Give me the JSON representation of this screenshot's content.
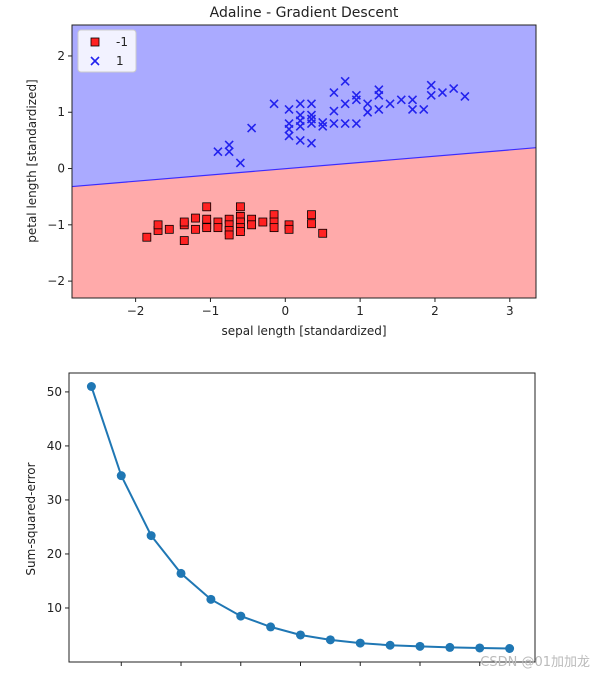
{
  "chart_data": [
    {
      "type": "scatter",
      "title": "Adaline - Gradient Descent",
      "xlabel": "sepal length [standardized]",
      "ylabel": "petal length [standardized]",
      "xlim": [
        -2.85,
        3.35
      ],
      "ylim": [
        -2.3,
        2.55
      ],
      "x_ticks": [
        -2,
        -1,
        0,
        1,
        2,
        3
      ],
      "x_tick_labels": [
        "−2",
        "−1",
        "0",
        "1",
        "2",
        "3"
      ],
      "y_ticks": [
        -2,
        -1,
        0,
        1,
        2
      ],
      "y_tick_labels": [
        "−2",
        "−1",
        "0",
        "1",
        "2"
      ],
      "decision_boundary": {
        "points": [
          [
            -2.85,
            -0.32
          ],
          [
            3.35,
            0.37
          ]
        ],
        "color": "#3b2bff"
      },
      "regions": [
        {
          "label": "-1",
          "color": "#ffaaaa"
        },
        {
          "label": "1",
          "color": "#aaaaff"
        }
      ],
      "legend": {
        "position": "top-left",
        "entries": [
          {
            "label": "-1",
            "marker": "square",
            "color": "#ff2222"
          },
          {
            "label": "1",
            "marker": "x",
            "color": "#2222ee"
          }
        ]
      },
      "series": [
        {
          "name": "-1",
          "marker": "square",
          "color": "#ff2222",
          "points": [
            [
              -1.85,
              -1.22
            ],
            [
              -1.7,
              -1.1
            ],
            [
              -1.7,
              -1.0
            ],
            [
              -1.55,
              -1.08
            ],
            [
              -1.35,
              -1.28
            ],
            [
              -1.35,
              -1.0
            ],
            [
              -1.35,
              -0.95
            ],
            [
              -1.2,
              -1.08
            ],
            [
              -1.2,
              -0.88
            ],
            [
              -1.05,
              -1.0
            ],
            [
              -1.05,
              -0.9
            ],
            [
              -1.05,
              -0.68
            ],
            [
              -1.05,
              -1.05
            ],
            [
              -0.9,
              -0.95
            ],
            [
              -0.9,
              -1.05
            ],
            [
              -0.75,
              -0.9
            ],
            [
              -0.75,
              -1.0
            ],
            [
              -0.75,
              -1.1
            ],
            [
              -0.75,
              -1.18
            ],
            [
              -0.6,
              -0.68
            ],
            [
              -0.6,
              -0.85
            ],
            [
              -0.6,
              -0.95
            ],
            [
              -0.6,
              -1.05
            ],
            [
              -0.6,
              -1.12
            ],
            [
              -0.45,
              -0.9
            ],
            [
              -0.45,
              -1.0
            ],
            [
              -0.3,
              -0.95
            ],
            [
              -0.15,
              -0.82
            ],
            [
              -0.15,
              -0.95
            ],
            [
              -0.15,
              -1.05
            ],
            [
              0.05,
              -1.0
            ],
            [
              0.05,
              -1.08
            ],
            [
              0.35,
              -0.82
            ],
            [
              0.35,
              -0.98
            ],
            [
              0.5,
              -1.15
            ]
          ]
        },
        {
          "name": "1",
          "marker": "x",
          "color": "#2222ee",
          "points": [
            [
              -0.9,
              0.3
            ],
            [
              -0.75,
              0.3
            ],
            [
              -0.75,
              0.42
            ],
            [
              -0.6,
              0.1
            ],
            [
              -0.45,
              0.72
            ],
            [
              -0.15,
              1.15
            ],
            [
              0.05,
              0.58
            ],
            [
              0.05,
              0.7
            ],
            [
              0.05,
              0.8
            ],
            [
              0.05,
              1.05
            ],
            [
              0.2,
              1.15
            ],
            [
              0.2,
              0.95
            ],
            [
              0.2,
              0.85
            ],
            [
              0.2,
              0.75
            ],
            [
              0.2,
              0.5
            ],
            [
              0.35,
              0.95
            ],
            [
              0.35,
              0.88
            ],
            [
              0.35,
              0.8
            ],
            [
              0.35,
              1.15
            ],
            [
              0.35,
              0.45
            ],
            [
              0.5,
              0.75
            ],
            [
              0.5,
              0.82
            ],
            [
              0.65,
              1.02
            ],
            [
              0.65,
              1.35
            ],
            [
              0.65,
              0.8
            ],
            [
              0.8,
              1.55
            ],
            [
              0.8,
              1.15
            ],
            [
              0.8,
              0.8
            ],
            [
              0.95,
              1.3
            ],
            [
              0.95,
              1.22
            ],
            [
              0.95,
              0.8
            ],
            [
              1.1,
              1.15
            ],
            [
              1.1,
              1.0
            ],
            [
              1.25,
              1.4
            ],
            [
              1.25,
              1.3
            ],
            [
              1.25,
              1.05
            ],
            [
              1.4,
              1.15
            ],
            [
              1.55,
              1.22
            ],
            [
              1.7,
              1.22
            ],
            [
              1.7,
              1.05
            ],
            [
              1.85,
              1.05
            ],
            [
              1.95,
              1.48
            ],
            [
              1.95,
              1.3
            ],
            [
              2.1,
              1.35
            ],
            [
              2.25,
              1.42
            ],
            [
              2.4,
              1.28
            ]
          ]
        }
      ]
    },
    {
      "type": "line",
      "title": "",
      "xlabel": "",
      "ylabel": "Sum-squared-error",
      "xlim": [
        0.25,
        15.85
      ],
      "ylim": [
        0,
        53.5
      ],
      "x_ticks": [
        2,
        4,
        6,
        8,
        10,
        12,
        14
      ],
      "x_tick_labels": [
        "",
        "",
        "",
        "",
        "",
        "",
        ""
      ],
      "y_ticks": [
        10,
        20,
        30,
        40,
        50
      ],
      "y_tick_labels": [
        "10",
        "20",
        "30",
        "40",
        "50"
      ],
      "line_color": "#1f77b4",
      "x": [
        1,
        2,
        3,
        4,
        5,
        6,
        7,
        8,
        9,
        10,
        11,
        12,
        13,
        14,
        15
      ],
      "values": [
        51.0,
        34.5,
        23.4,
        16.4,
        11.6,
        8.5,
        6.5,
        5.0,
        4.1,
        3.5,
        3.1,
        2.9,
        2.7,
        2.6,
        2.5
      ]
    }
  ],
  "watermark": "CSDN @01加加龙"
}
